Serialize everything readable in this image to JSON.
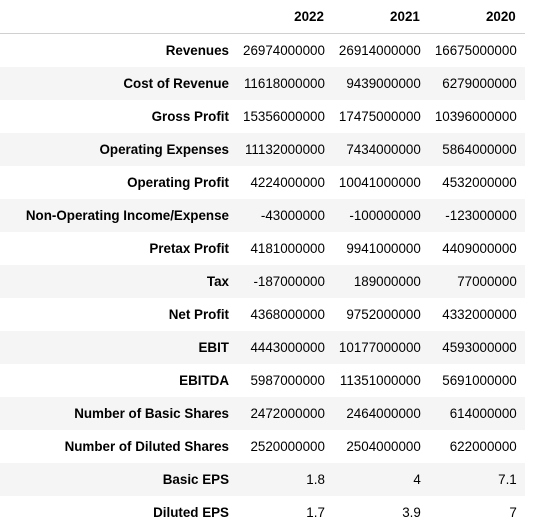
{
  "table": {
    "columns": [
      "",
      "2022",
      "2021",
      "2020"
    ],
    "rows": [
      {
        "label": "Revenues",
        "values": [
          "26974000000",
          "26914000000",
          "16675000000"
        ]
      },
      {
        "label": "Cost of Revenue",
        "values": [
          "11618000000",
          "9439000000",
          "6279000000"
        ]
      },
      {
        "label": "Gross Profit",
        "values": [
          "15356000000",
          "17475000000",
          "10396000000"
        ]
      },
      {
        "label": "Operating Expenses",
        "values": [
          "11132000000",
          "7434000000",
          "5864000000"
        ]
      },
      {
        "label": "Operating Profit",
        "values": [
          "4224000000",
          "10041000000",
          "4532000000"
        ]
      },
      {
        "label": "Non-Operating Income/Expense",
        "values": [
          "-43000000",
          "-100000000",
          "-123000000"
        ]
      },
      {
        "label": "Pretax Profit",
        "values": [
          "4181000000",
          "9941000000",
          "4409000000"
        ]
      },
      {
        "label": "Tax",
        "values": [
          "-187000000",
          "189000000",
          "77000000"
        ]
      },
      {
        "label": "Net Profit",
        "values": [
          "4368000000",
          "9752000000",
          "4332000000"
        ]
      },
      {
        "label": "EBIT",
        "values": [
          "4443000000",
          "10177000000",
          "4593000000"
        ]
      },
      {
        "label": "EBITDA",
        "values": [
          "5987000000",
          "11351000000",
          "5691000000"
        ]
      },
      {
        "label": "Number of Basic Shares",
        "values": [
          "2472000000",
          "2464000000",
          "614000000"
        ]
      },
      {
        "label": "Number of Diluted Shares",
        "values": [
          "2520000000",
          "2504000000",
          "622000000"
        ]
      },
      {
        "label": "Basic EPS",
        "values": [
          "1.8",
          "4",
          "7.1"
        ]
      },
      {
        "label": "Diluted EPS",
        "values": [
          "1.7",
          "3.9",
          "7"
        ]
      }
    ]
  }
}
